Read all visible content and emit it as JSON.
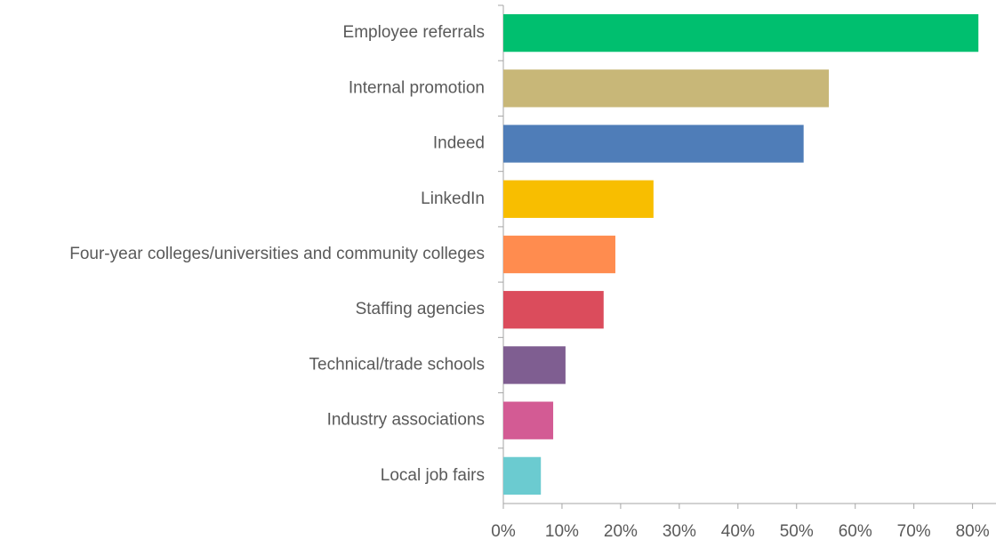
{
  "chart_data": {
    "type": "bar",
    "orientation": "horizontal",
    "categories": [
      "Employee referrals",
      "Internal promotion",
      "Indeed",
      "LinkedIn",
      "Four-year colleges/universities and community colleges",
      "Staffing agencies",
      "Technical/trade schools",
      "Industry associations",
      "Local job fairs"
    ],
    "values": [
      81,
      55.5,
      51.2,
      25.6,
      19.1,
      17.1,
      10.6,
      8.5,
      6.4
    ],
    "colors": [
      "#00bf6f",
      "#c8b778",
      "#4f7db8",
      "#f8be00",
      "#ff8c4f",
      "#db4c5c",
      "#7f5e91",
      "#d35b94",
      "#6bcbd0"
    ],
    "xlim": [
      0,
      84
    ],
    "xticks": [
      {
        "value": 0,
        "label": "0%"
      },
      {
        "value": 10,
        "label": "10%"
      },
      {
        "value": 20,
        "label": "20%"
      },
      {
        "value": 30,
        "label": "30%"
      },
      {
        "value": 40,
        "label": "40%"
      },
      {
        "value": 50,
        "label": "50%"
      },
      {
        "value": 60,
        "label": "60%"
      },
      {
        "value": 70,
        "label": "70%"
      },
      {
        "value": 80,
        "label": "80%"
      }
    ],
    "grid": false
  }
}
